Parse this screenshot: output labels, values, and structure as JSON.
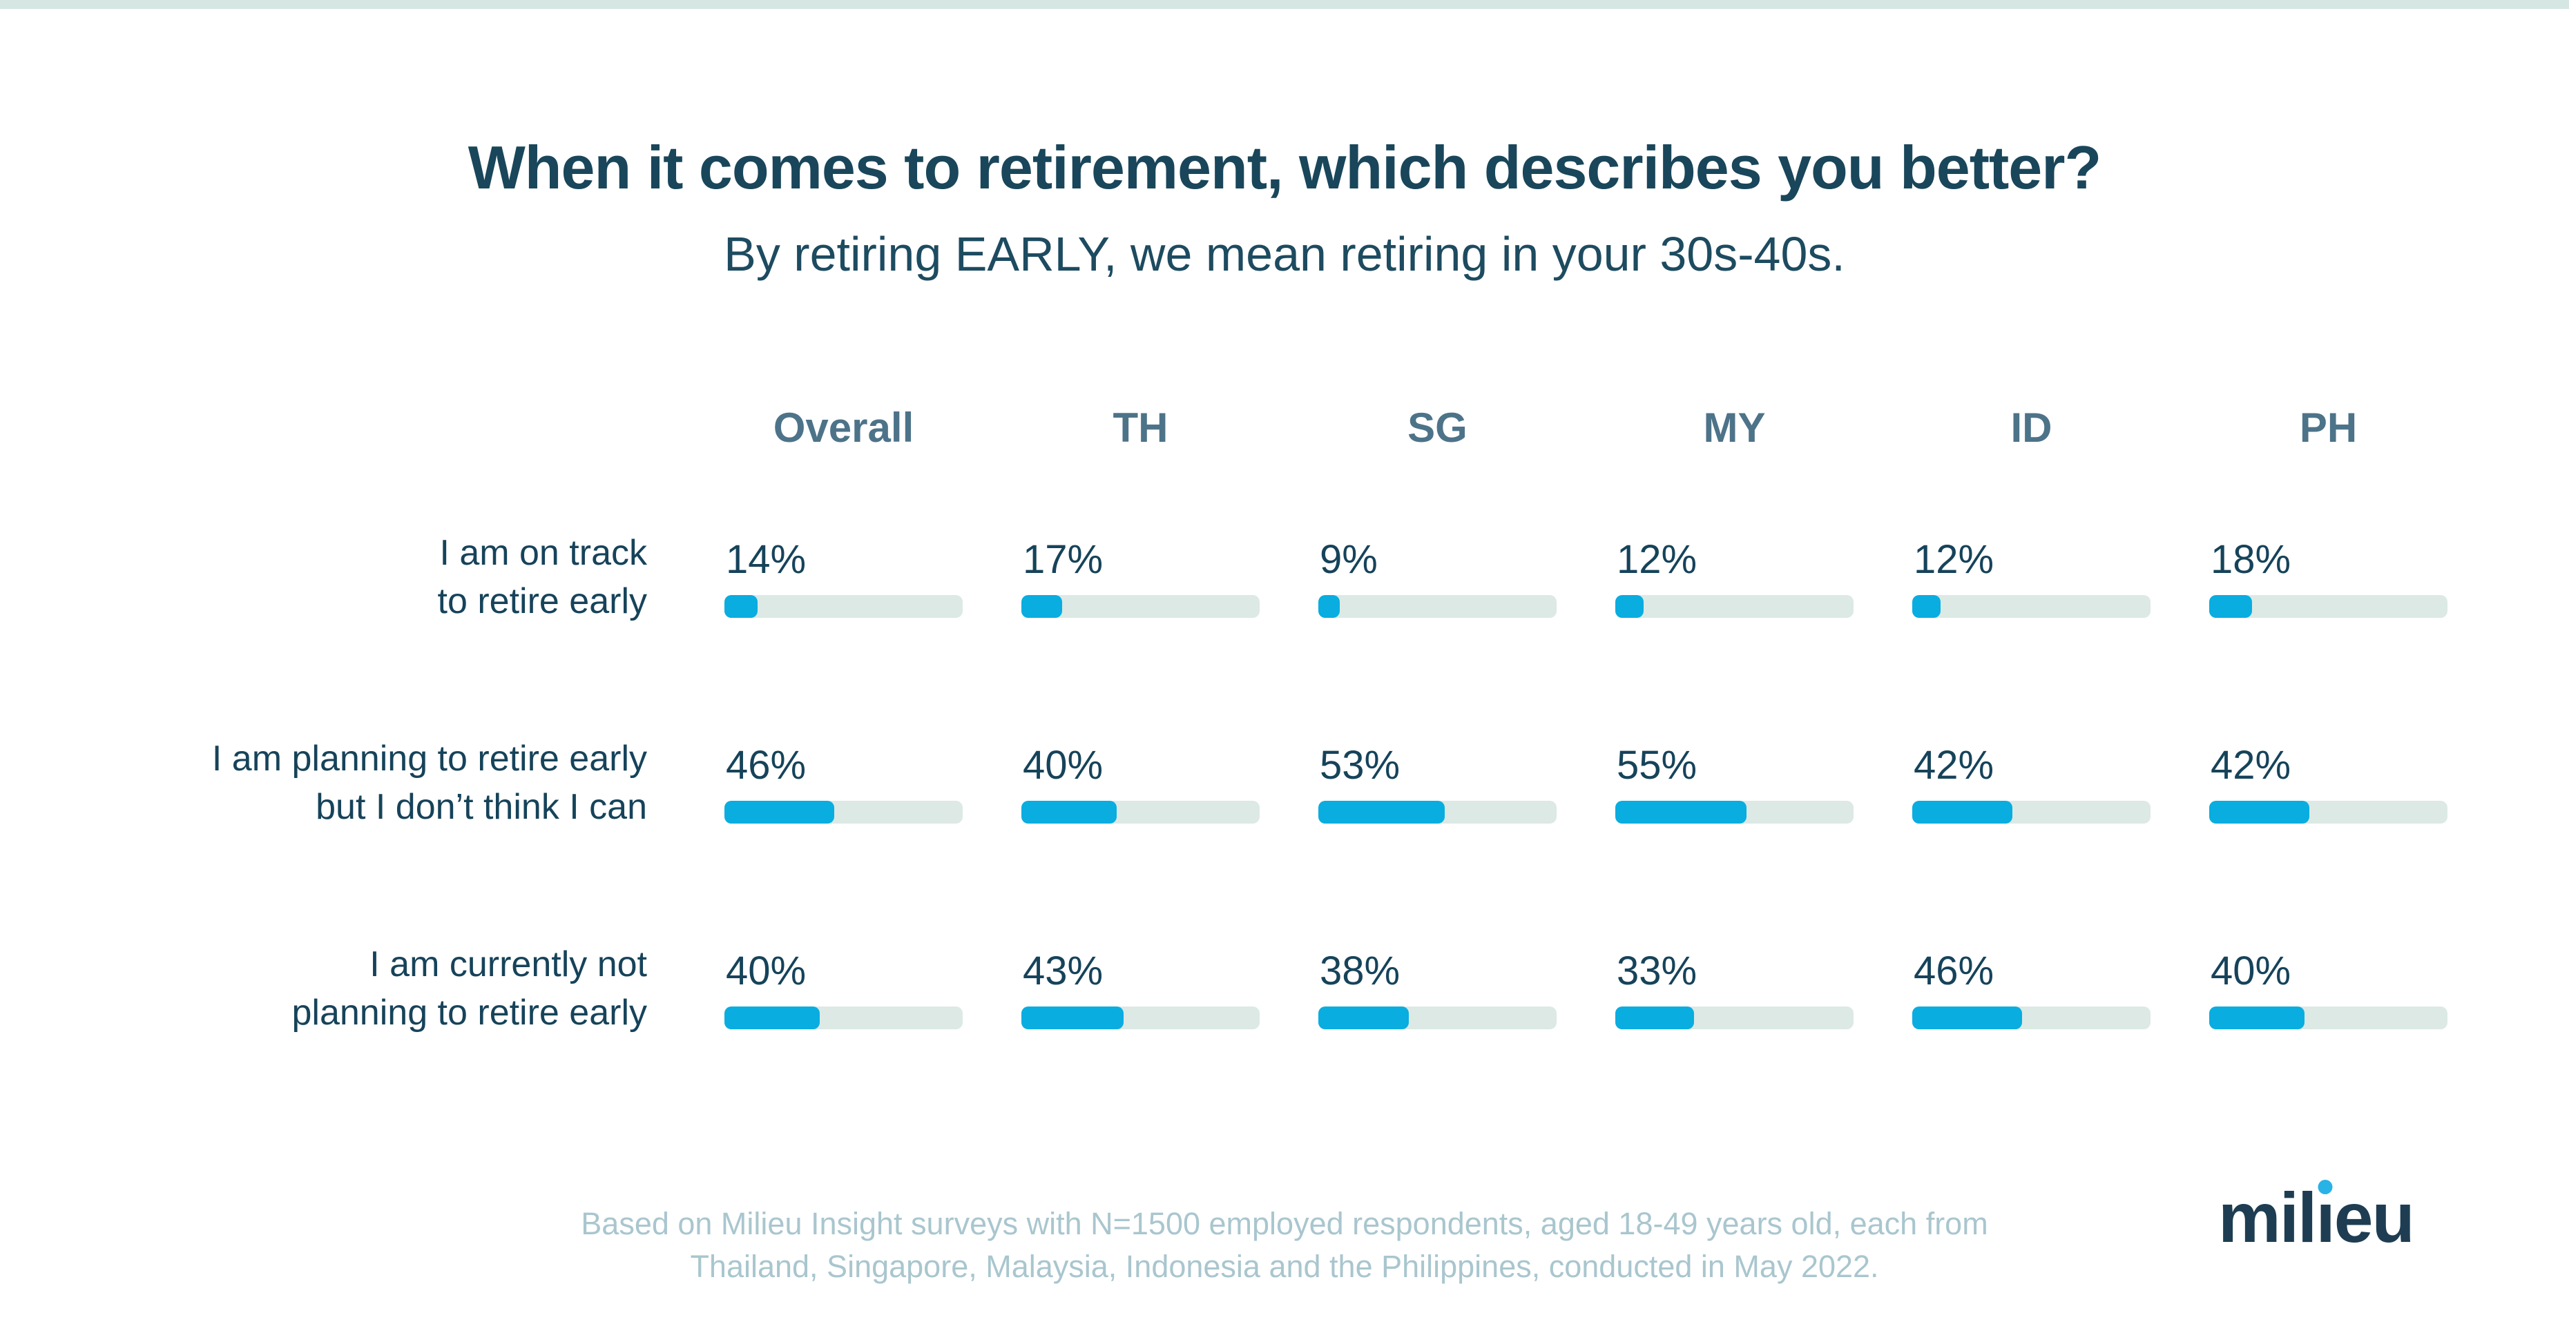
{
  "page": {
    "title": "When it comes to retirement, which describes you better?",
    "subtitle": "By retiring EARLY, we mean retiring in your 30s-40s.",
    "footnote_line1": "Based on Milieu Insight surveys with N=1500 employed respondents, aged 18-49 years old, each from",
    "footnote_line2": "Thailand, Singapore, Malaysia, Indonesia and the Philippines, conducted in May 2022.",
    "logo": {
      "part1": "mil",
      "part2": "eu",
      "full_text": "milieu"
    }
  },
  "chart_data": {
    "type": "bar",
    "title": "When it comes to retirement, which describes you better?",
    "subtitle": "By retiring EARLY, we mean retiring in your 30s-40s.",
    "columns": [
      "Overall",
      "TH",
      "SG",
      "MY",
      "ID",
      "PH"
    ],
    "rows": [
      {
        "label": "I am on track to retire early",
        "label_lines": [
          "I am on track",
          "to retire early"
        ],
        "values": [
          14,
          17,
          9,
          12,
          12,
          18
        ],
        "display": [
          "14%",
          "17%",
          "9%",
          "12%",
          "12%",
          "18%"
        ]
      },
      {
        "label": "I am planning to retire early but I don’t think I can",
        "label_lines": [
          "I am planning to retire early",
          "but I don’t think I can"
        ],
        "values": [
          46,
          40,
          53,
          55,
          42,
          42
        ],
        "display": [
          "46%",
          "40%",
          "53%",
          "55%",
          "42%",
          "42%"
        ]
      },
      {
        "label": "I am currently not planning to retire early",
        "label_lines": [
          "I am currently not",
          "planning to retire early"
        ],
        "values": [
          40,
          43,
          38,
          33,
          46,
          40
        ],
        "display": [
          "40%",
          "43%",
          "38%",
          "33%",
          "46%",
          "40%"
        ]
      }
    ],
    "value_suffix": "%",
    "axis_range": [
      0,
      100
    ],
    "grid": false,
    "legend": "none",
    "colors": {
      "bar_fill": "#09ade0",
      "bar_track": "#dce9e5",
      "title_text": "#19465a",
      "column_header_text": "#4d7389",
      "footnote_text": "#a9c6ce",
      "logo_text": "#1e3d52",
      "logo_dot": "#29b2e6",
      "top_strip": "#d6e7e3"
    }
  }
}
